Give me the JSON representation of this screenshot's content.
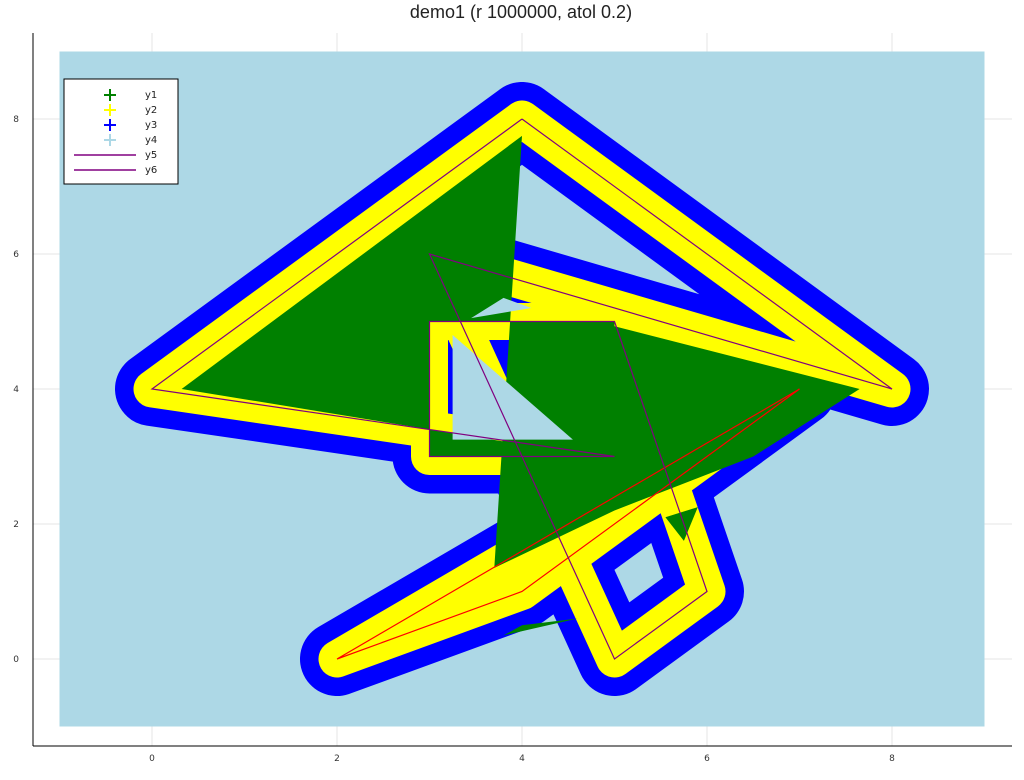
{
  "chart_data": {
    "type": "scatter",
    "title": "demo1 (r 1000000, atol 0.2)",
    "xlim": [
      -1.3,
      9.5
    ],
    "ylim": [
      -1.3,
      9.2
    ],
    "xticks": [
      0,
      2,
      4,
      6,
      8
    ],
    "yticks": [
      0,
      2,
      4,
      6,
      8
    ],
    "grid": true,
    "legend_position": "top-left",
    "background_region": {
      "x": [
        -1,
        9
      ],
      "y": [
        -1,
        9
      ],
      "color": "#add8e6"
    },
    "series": [
      {
        "name": "y1",
        "marker": "+",
        "color": "#008000",
        "role": "inner-fill",
        "polygons": [
          [
            [
              4.0,
              7.75
            ],
            [
              0.32,
              4.0
            ],
            [
              4.8,
              3.0
            ],
            [
              3.0,
              3.0
            ],
            [
              3.0,
              5.0
            ],
            [
              5.0,
              5.0
            ],
            [
              5.0,
              4.93
            ],
            [
              7.65,
              4.0
            ],
            [
              6.5,
              3.0
            ],
            [
              5.0,
              2.2
            ],
            [
              3.7,
              1.35
            ],
            [
              4.0,
              7.75
            ]
          ],
          [
            [
              5.55,
              2.1
            ],
            [
              5.75,
              1.75
            ],
            [
              5.9,
              2.25
            ]
          ],
          [
            [
              4.0,
              0.5
            ],
            [
              4.6,
              0.6
            ],
            [
              3.8,
              0.35
            ]
          ]
        ],
        "holes": [
          [
            [
              3.25,
              4.8
            ],
            [
              3.25,
              3.25
            ],
            [
              4.55,
              3.25
            ],
            [
              3.25,
              4.8
            ]
          ],
          [
            [
              3.45,
              5.05
            ],
            [
              3.8,
              5.35
            ],
            [
              4.1,
              5.2
            ]
          ]
        ]
      },
      {
        "name": "y2",
        "marker": "+",
        "color": "#ffff00",
        "role": "inner-band",
        "halfwidth": 0.2
      },
      {
        "name": "y3",
        "marker": "+",
        "color": "#0000ff",
        "role": "outer-band",
        "halfwidth": 0.4
      },
      {
        "name": "y4",
        "marker": "+",
        "color": "#add8e6",
        "role": "background"
      },
      {
        "name": "y5",
        "marker": "line",
        "color": "#800080",
        "role": "boundary-1",
        "x": [
          4,
          0,
          5,
          3,
          3,
          5,
          6,
          5,
          3,
          8,
          4
        ],
        "y": [
          8,
          4,
          3,
          3,
          5,
          5,
          1,
          0,
          6,
          4,
          8
        ]
      },
      {
        "name": "y6",
        "marker": "line",
        "color": "#800080",
        "role": "boundary-2",
        "x": [
          2,
          7,
          4,
          2
        ],
        "y": [
          0,
          4,
          1,
          0
        ]
      }
    ]
  }
}
